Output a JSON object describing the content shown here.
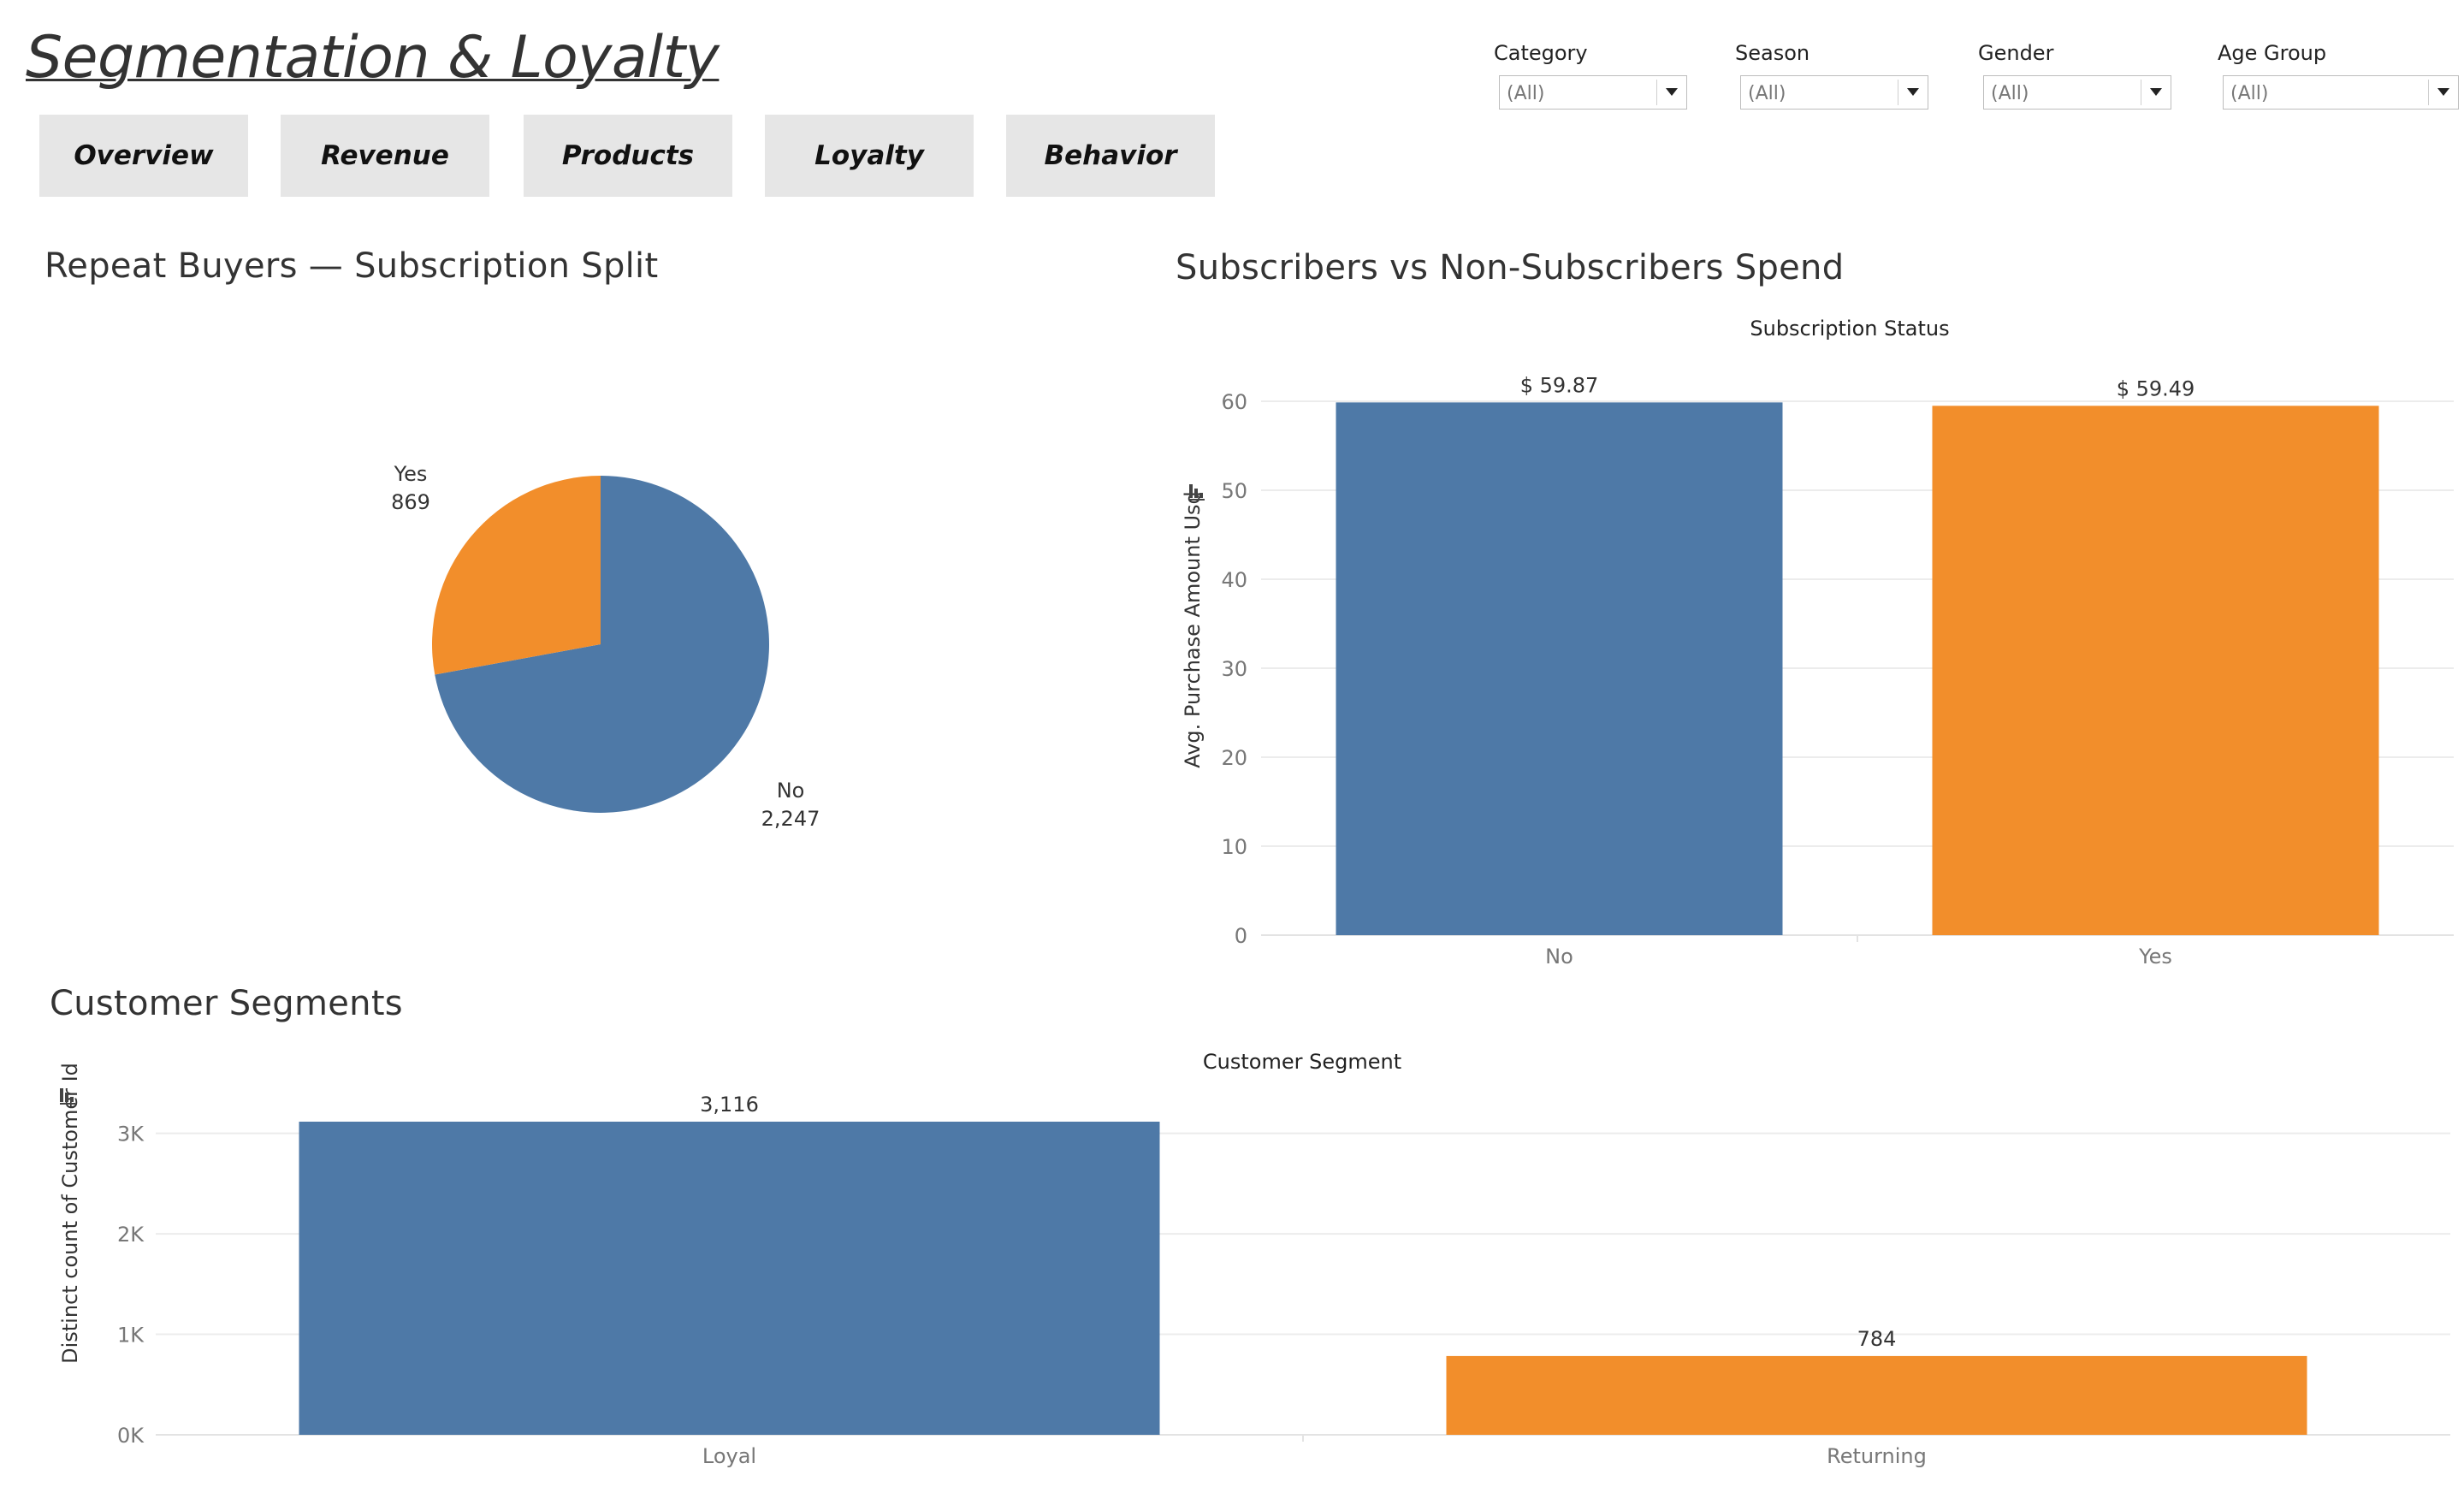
{
  "dashboard": {
    "title": "Segmentation & Loyalty"
  },
  "nav": {
    "tabs": [
      {
        "label": "Overview"
      },
      {
        "label": "Revenue"
      },
      {
        "label": "Products"
      },
      {
        "label": "Loyalty"
      },
      {
        "label": "Behavior"
      }
    ]
  },
  "filters": [
    {
      "label": "Category",
      "value": "(All)"
    },
    {
      "label": "Season",
      "value": "(All)"
    },
    {
      "label": "Gender",
      "value": "(All)"
    },
    {
      "label": "Age Group",
      "value": "(All)"
    }
  ],
  "sheets": {
    "repeat": {
      "title": "Repeat Buyers — Subscription Split"
    },
    "spend": {
      "title": "Subscribers vs Non-Subscribers Spend"
    },
    "segments": {
      "title": "Customer Segments"
    }
  },
  "colors": {
    "blue": "#4e79a7",
    "orange": "#f28e2b",
    "grid": "#ececec",
    "axis_text": "#777777"
  },
  "chart_data": [
    {
      "id": "repeat",
      "type": "pie",
      "title": "Repeat Buyers — Subscription Split",
      "slices": [
        {
          "label": "No",
          "value": 2247,
          "value_label": "2,247",
          "color": "#4e79a7"
        },
        {
          "label": "Yes",
          "value": 869,
          "value_label": "869",
          "color": "#f28e2b"
        }
      ]
    },
    {
      "id": "spend",
      "type": "bar",
      "title": "Subscribers vs Non-Subscribers Spend",
      "header": "Subscription Status",
      "categories": [
        "No",
        "Yes"
      ],
      "values": [
        59.87,
        59.49
      ],
      "value_labels": [
        "$ 59.87",
        "$ 59.49"
      ],
      "colors": [
        "#4e79a7",
        "#f28e2b"
      ],
      "ylabel": "Avg. Purchase Amount Usd",
      "yticks": [
        0,
        10,
        20,
        30,
        40,
        50,
        60
      ],
      "ytick_labels": [
        "0",
        "10",
        "20",
        "30",
        "40",
        "50",
        "60"
      ],
      "ylim": [
        0,
        60
      ],
      "grid": true
    },
    {
      "id": "segments",
      "type": "bar",
      "title": "Customer Segments",
      "header": "Customer Segment",
      "categories": [
        "Loyal",
        "Returning"
      ],
      "values": [
        3116,
        784
      ],
      "value_labels": [
        "3,116",
        "784"
      ],
      "colors": [
        "#4e79a7",
        "#f28e2b"
      ],
      "ylabel": "Distinct count of Customer Id",
      "yticks": [
        0,
        1000,
        2000,
        3000
      ],
      "ytick_labels": [
        "0K",
        "1K",
        "2K",
        "3K"
      ],
      "ylim": [
        0,
        3116
      ],
      "grid": true
    }
  ]
}
